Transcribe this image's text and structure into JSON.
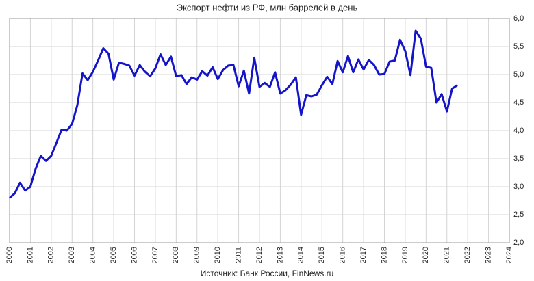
{
  "chart_data": {
    "type": "line",
    "title": "Экспорт нефти из РФ, млн баррелей в день",
    "source": "Источник: Банк России, FinNews.ru",
    "x": [
      2000,
      2000.25,
      2000.5,
      2000.75,
      2001,
      2001.25,
      2001.5,
      2001.75,
      2002,
      2002.25,
      2002.5,
      2002.75,
      2003,
      2003.25,
      2003.5,
      2003.75,
      2004,
      2004.25,
      2004.5,
      2004.75,
      2005,
      2005.25,
      2005.5,
      2005.75,
      2006,
      2006.25,
      2006.5,
      2006.75,
      2007,
      2007.25,
      2007.5,
      2007.75,
      2008,
      2008.25,
      2008.5,
      2008.75,
      2009,
      2009.25,
      2009.5,
      2009.75,
      2010,
      2010.25,
      2010.5,
      2010.75,
      2011,
      2011.25,
      2011.5,
      2011.75,
      2012,
      2012.25,
      2012.5,
      2012.75,
      2013,
      2013.25,
      2013.5,
      2013.75,
      2014,
      2014.25,
      2014.5,
      2014.75,
      2015,
      2015.25,
      2015.5,
      2015.75,
      2016,
      2016.25,
      2016.5,
      2016.75,
      2017,
      2017.25,
      2017.5,
      2017.75,
      2018,
      2018.25,
      2018.5,
      2018.75,
      2019,
      2019.25,
      2019.5,
      2019.75,
      2020,
      2020.25,
      2020.5,
      2020.75,
      2021,
      2021.25,
      2021.5
    ],
    "series": [
      {
        "name": "Экспорт нефти",
        "color": "#1414c8",
        "values": [
          2.8,
          2.88,
          3.07,
          2.93,
          3.0,
          3.32,
          3.55,
          3.46,
          3.55,
          3.78,
          4.02,
          4.0,
          4.12,
          4.45,
          5.02,
          4.9,
          5.05,
          5.25,
          5.47,
          5.37,
          4.91,
          5.21,
          5.19,
          5.16,
          4.98,
          5.17,
          5.05,
          4.97,
          5.11,
          5.36,
          5.17,
          5.32,
          4.97,
          4.99,
          4.83,
          4.95,
          4.91,
          5.06,
          4.98,
          5.13,
          4.92,
          5.08,
          5.16,
          5.17,
          4.79,
          5.07,
          4.66,
          5.3,
          4.78,
          4.85,
          4.78,
          5.04,
          4.66,
          4.72,
          4.82,
          4.95,
          4.28,
          4.63,
          4.61,
          4.64,
          4.81,
          4.96,
          4.83,
          5.24,
          5.04,
          5.33,
          5.04,
          5.27,
          5.09,
          5.26,
          5.17,
          5.0,
          5.01,
          5.23,
          5.25,
          5.62,
          5.42,
          4.99,
          5.78,
          5.64,
          5.14,
          5.12,
          4.5,
          4.65,
          4.34,
          4.75,
          4.81
        ]
      }
    ],
    "xlim": [
      2000,
      2024
    ],
    "xticks": [
      2000,
      2001,
      2002,
      2003,
      2004,
      2005,
      2006,
      2007,
      2008,
      2009,
      2010,
      2011,
      2012,
      2013,
      2014,
      2015,
      2016,
      2017,
      2018,
      2019,
      2020,
      2021,
      2022,
      2023,
      2024
    ],
    "ylim": [
      2,
      6
    ],
    "yticks": [
      {
        "value": 2,
        "label": "2,0"
      },
      {
        "value": 2.5,
        "label": "2,5"
      },
      {
        "value": 3,
        "label": "3,0"
      },
      {
        "value": 3.5,
        "label": "3,5"
      },
      {
        "value": 4,
        "label": "4,0"
      },
      {
        "value": 4.5,
        "label": "4,5"
      },
      {
        "value": 5,
        "label": "5,0"
      },
      {
        "value": 5.5,
        "label": "5,5"
      },
      {
        "value": 6,
        "label": "6,0"
      }
    ],
    "grid": true
  }
}
